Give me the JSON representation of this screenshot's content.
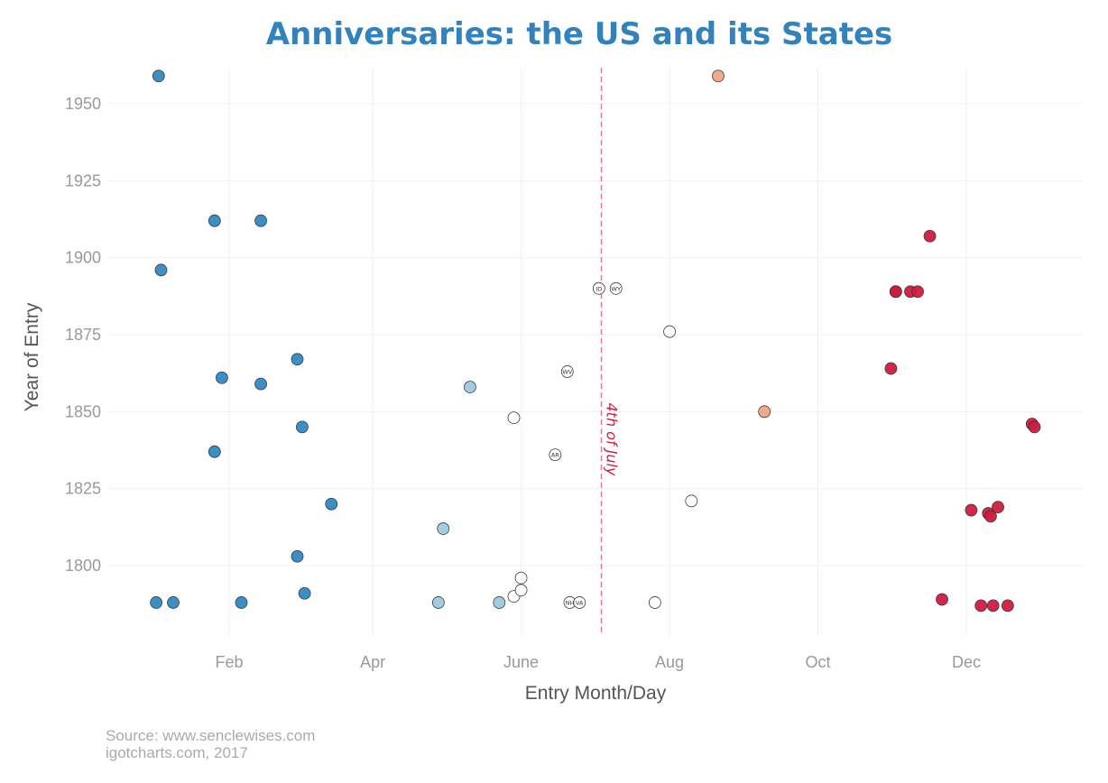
{
  "chart_data": {
    "type": "scatter",
    "title": "Anniversaries: the US and its States",
    "xlabel": "Entry Month/Day",
    "ylabel": "Year of Entry",
    "x_ticks": [
      "Feb",
      "Apr",
      "June",
      "Aug",
      "Oct",
      "Dec"
    ],
    "y_ticks": [
      1800,
      1825,
      1850,
      1875,
      1900,
      1925,
      1950
    ],
    "ylim": [
      1781,
      1962
    ],
    "xlim": [
      "Dec 15",
      "Dec 31"
    ],
    "grid": true,
    "legend": "none",
    "reference_line": {
      "date": "Jul 4",
      "label": "4th of July",
      "color": "#e05a7a"
    },
    "points": [
      {
        "date": "Jan 3",
        "year": 1959,
        "color": "#2f8ac4"
      },
      {
        "date": "Jan 4",
        "year": 1896,
        "color": "#2f8ac4"
      },
      {
        "date": "Jan 2",
        "year": 1788,
        "color": "#2f8ac4"
      },
      {
        "date": "Jan 9",
        "year": 1788,
        "color": "#2f8ac4"
      },
      {
        "date": "Jan 26",
        "year": 1837,
        "color": "#2f8ac4"
      },
      {
        "date": "Jan 29",
        "year": 1861,
        "color": "#2f8ac4"
      },
      {
        "date": "Jan 26",
        "year": 1912,
        "color": "#2f8ac4"
      },
      {
        "date": "Feb 6",
        "year": 1788,
        "color": "#2f8ac4"
      },
      {
        "date": "Feb 14",
        "year": 1912,
        "color": "#2f8ac4"
      },
      {
        "date": "Feb 14",
        "year": 1859,
        "color": "#2f8ac4"
      },
      {
        "date": "Mar 1",
        "year": 1803,
        "color": "#2f8ac4"
      },
      {
        "date": "Mar 1",
        "year": 1867,
        "color": "#2f8ac4"
      },
      {
        "date": "Mar 3",
        "year": 1845,
        "color": "#2f8ac4"
      },
      {
        "date": "Mar 4",
        "year": 1791,
        "color": "#2f8ac4"
      },
      {
        "date": "Mar 15",
        "year": 1820,
        "color": "#2f8ac4"
      },
      {
        "date": "Apr 28",
        "year": 1788,
        "color": "#9ecae1"
      },
      {
        "date": "Apr 30",
        "year": 1812,
        "color": "#9ecae1"
      },
      {
        "date": "May 11",
        "year": 1858,
        "color": "#9ecae1"
      },
      {
        "date": "May 23",
        "year": 1788,
        "color": "#9ecae1"
      },
      {
        "date": "May 29",
        "year": 1848,
        "color": "#ffffff"
      },
      {
        "date": "May 29",
        "year": 1790,
        "color": "#ffffff"
      },
      {
        "date": "Jun 1",
        "year": 1792,
        "color": "#ffffff"
      },
      {
        "date": "Jun 1",
        "year": 1796,
        "color": "#ffffff"
      },
      {
        "date": "Jun 15",
        "year": 1836,
        "label": "AR",
        "color": "#ffffff"
      },
      {
        "date": "Jun 20",
        "year": 1863,
        "label": "WV",
        "color": "#ffffff"
      },
      {
        "date": "Jun 21",
        "year": 1788,
        "label": "NH",
        "color": "#ffffff"
      },
      {
        "date": "Jun 25",
        "year": 1788,
        "label": "VA",
        "color": "#ffffff"
      },
      {
        "date": "Jul 3",
        "year": 1890,
        "label": "ID",
        "color": "#ffffff"
      },
      {
        "date": "Jul 10",
        "year": 1890,
        "label": "WY",
        "color": "#ffffff"
      },
      {
        "date": "Jul 26",
        "year": 1788,
        "color": "#ffffff"
      },
      {
        "date": "Aug 1",
        "year": 1876,
        "color": "#ffffff"
      },
      {
        "date": "Aug 10",
        "year": 1821,
        "color": "#ffffff"
      },
      {
        "date": "Aug 21",
        "year": 1959,
        "color": "#f4a582"
      },
      {
        "date": "Sep 9",
        "year": 1850,
        "color": "#f4a582"
      },
      {
        "date": "Oct 31",
        "year": 1864,
        "color": "#d01c3f"
      },
      {
        "date": "Nov 2",
        "year": 1889,
        "color": "#d01c3f"
      },
      {
        "date": "Nov 2",
        "year": 1889,
        "color": "#d01c3f"
      },
      {
        "date": "Nov 8",
        "year": 1889,
        "color": "#d01c3f"
      },
      {
        "date": "Nov 11",
        "year": 1889,
        "color": "#d01c3f"
      },
      {
        "date": "Nov 16",
        "year": 1907,
        "color": "#d01c3f"
      },
      {
        "date": "Nov 21",
        "year": 1789,
        "color": "#d01c3f"
      },
      {
        "date": "Dec 3",
        "year": 1818,
        "color": "#d01c3f"
      },
      {
        "date": "Dec 7",
        "year": 1787,
        "color": "#d01c3f"
      },
      {
        "date": "Dec 10",
        "year": 1817,
        "color": "#d01c3f"
      },
      {
        "date": "Dec 11",
        "year": 1816,
        "color": "#d01c3f"
      },
      {
        "date": "Dec 12",
        "year": 1787,
        "color": "#d01c3f"
      },
      {
        "date": "Dec 14",
        "year": 1819,
        "color": "#d01c3f"
      },
      {
        "date": "Dec 18",
        "year": 1787,
        "color": "#d01c3f"
      },
      {
        "date": "Dec 28",
        "year": 1846,
        "color": "#d01c3f"
      },
      {
        "date": "Dec 29",
        "year": 1845,
        "color": "#d01c3f"
      }
    ]
  },
  "source_line": "Source: www.senclewises.com",
  "credit_line": "igotcharts.com, 2017"
}
